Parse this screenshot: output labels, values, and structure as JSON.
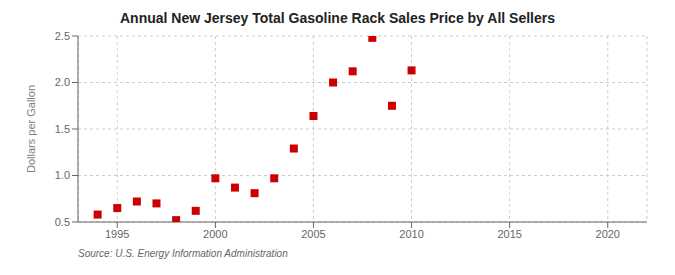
{
  "chart_data": {
    "type": "scatter",
    "title": "Annual New Jersey Total Gasoline Rack Sales Price by All Sellers",
    "y_label": "Dollars per Gallon",
    "annotations": [
      "Source: U.S. Energy Information Administration"
    ],
    "x": [
      1994,
      1995,
      1996,
      1997,
      1998,
      1999,
      2000,
      2001,
      2002,
      2003,
      2004,
      2005,
      2006,
      2007,
      2008,
      2009,
      2010
    ],
    "values": [
      0.58,
      0.65,
      0.72,
      0.7,
      0.52,
      0.62,
      0.97,
      0.87,
      0.81,
      0.97,
      1.29,
      1.64,
      2.0,
      2.12,
      2.48,
      1.75,
      2.13
    ],
    "color": "#cc0000",
    "marker": "square",
    "xlim": [
      1993,
      2022
    ],
    "ylim": [
      0.5,
      2.5
    ],
    "xticks": [
      1995,
      2000,
      2005,
      2010,
      2015,
      2020
    ],
    "yticks": [
      0.5,
      {
        "value": 1.0,
        "label": "1.0"
      },
      1.5,
      {
        "value": 2.0,
        "label": "2.0"
      },
      2.5
    ],
    "grid": true
  }
}
